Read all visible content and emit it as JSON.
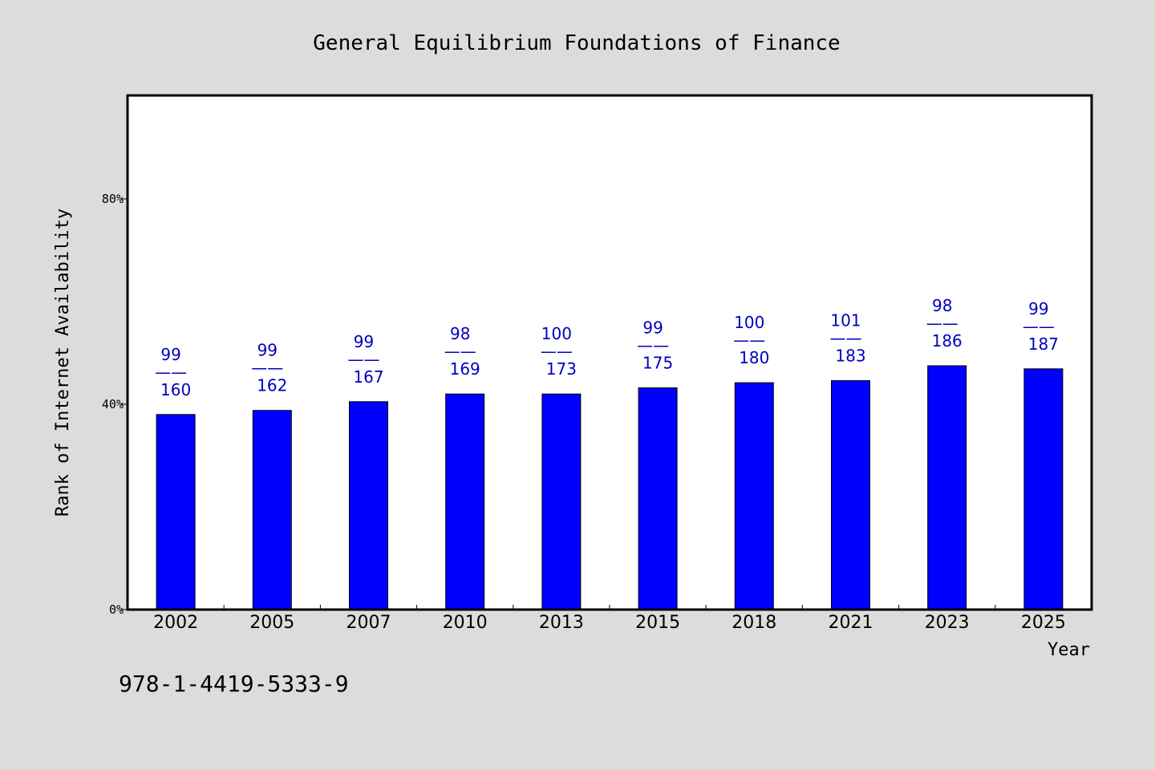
{
  "chart_data": {
    "type": "bar",
    "title": "General Equilibrium Foundations of Finance",
    "xlabel": "Year",
    "ylabel": "Rank of Internet Availability",
    "categories": [
      "2002",
      "2005",
      "2007",
      "2010",
      "2013",
      "2015",
      "2018",
      "2021",
      "2023",
      "2025"
    ],
    "values": [
      38,
      38.8,
      40.5,
      42,
      42,
      43.2,
      44.2,
      44.6,
      47.5,
      46.9
    ],
    "value_labels": [
      {
        "top": "99",
        "sep": "——",
        "bottom": "160"
      },
      {
        "top": "99",
        "sep": "——",
        "bottom": "162"
      },
      {
        "top": "99",
        "sep": "——",
        "bottom": "167"
      },
      {
        "top": "98",
        "sep": "——",
        "bottom": "169"
      },
      {
        "top": "100",
        "sep": "——",
        "bottom": "173"
      },
      {
        "top": "99",
        "sep": "——",
        "bottom": "175"
      },
      {
        "top": "100",
        "sep": "——",
        "bottom": "180"
      },
      {
        "top": "101",
        "sep": "——",
        "bottom": "183"
      },
      {
        "top": "98",
        "sep": "——",
        "bottom": "186"
      },
      {
        "top": "99",
        "sep": "——",
        "bottom": "187"
      }
    ],
    "ylim": [
      0,
      100
    ],
    "yticks": [
      {
        "value": 0,
        "label": "0%"
      },
      {
        "value": 40,
        "label": "40%"
      },
      {
        "value": 80,
        "label": "80%"
      }
    ],
    "grid": false,
    "bar_color": "#0000ff",
    "label_color": "#0000c0"
  },
  "footer_text": "978-1-4419-5333-9"
}
